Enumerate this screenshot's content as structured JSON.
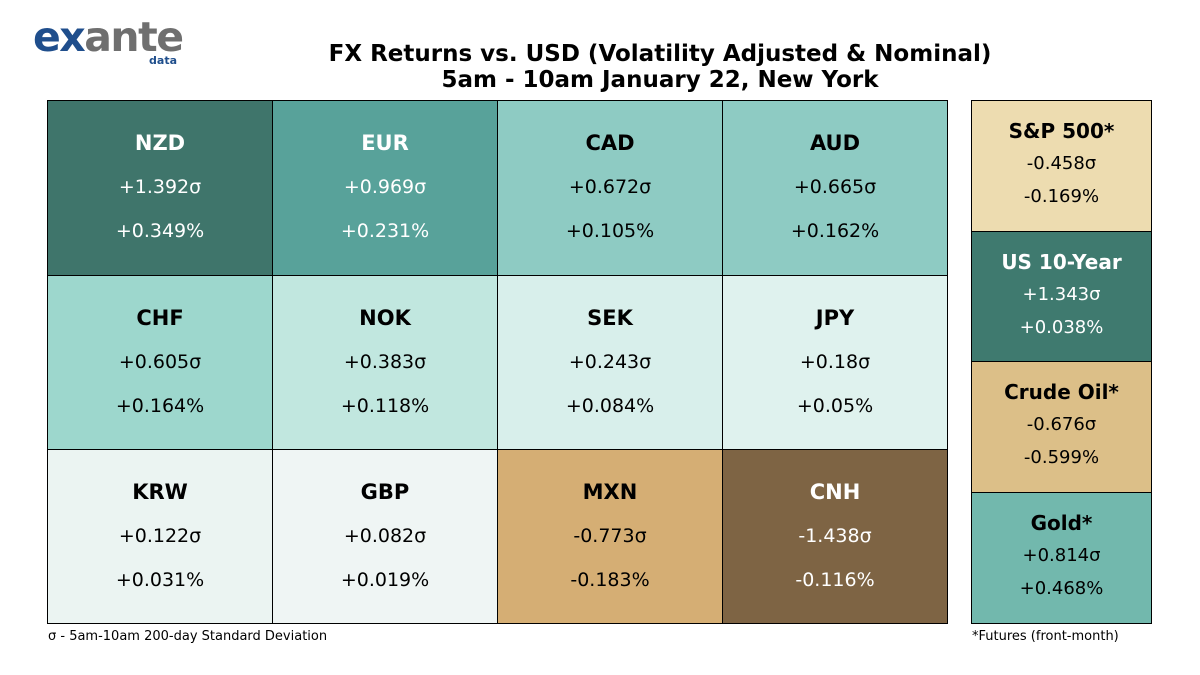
{
  "logo": {
    "word_part1": "ex",
    "word_part2": "ante",
    "sub": "data"
  },
  "title": {
    "line1": "FX Returns vs. USD (Volatility Adjusted & Nominal)",
    "line2": "5am - 10am January 22, New York"
  },
  "chart_data": {
    "type": "heatmap",
    "title": "FX Returns vs. USD (Volatility Adjusted & Nominal)",
    "subtitle": "5am - 10am January 22, New York",
    "currencies": [
      {
        "name": "NZD",
        "sigma": 1.392,
        "sigma_label": "+1.392σ",
        "pct": 0.349,
        "pct_label": "+0.349%",
        "color": "#3f756b"
      },
      {
        "name": "EUR",
        "sigma": 0.969,
        "sigma_label": "+0.969σ",
        "pct": 0.231,
        "pct_label": "+0.231%",
        "color": "#58a29a"
      },
      {
        "name": "CAD",
        "sigma": 0.672,
        "sigma_label": "+0.672σ",
        "pct": 0.105,
        "pct_label": "+0.105%",
        "color": "#8ecbc3"
      },
      {
        "name": "AUD",
        "sigma": 0.665,
        "sigma_label": "+0.665σ",
        "pct": 0.162,
        "pct_label": "+0.162%",
        "color": "#8ecbc3"
      },
      {
        "name": "CHF",
        "sigma": 0.605,
        "sigma_label": "+0.605σ",
        "pct": 0.164,
        "pct_label": "+0.164%",
        "color": "#9dd7cd"
      },
      {
        "name": "NOK",
        "sigma": 0.383,
        "sigma_label": "+0.383σ",
        "pct": 0.118,
        "pct_label": "+0.118%",
        "color": "#c1e7df"
      },
      {
        "name": "SEK",
        "sigma": 0.243,
        "sigma_label": "+0.243σ",
        "pct": 0.084,
        "pct_label": "+0.084%",
        "color": "#d8efeb"
      },
      {
        "name": "JPY",
        "sigma": 0.18,
        "sigma_label": "+0.18σ",
        "pct": 0.05,
        "pct_label": "+0.05%",
        "color": "#dff2ee"
      },
      {
        "name": "KRW",
        "sigma": 0.122,
        "sigma_label": "+0.122σ",
        "pct": 0.031,
        "pct_label": "+0.031%",
        "color": "#ebf4f2"
      },
      {
        "name": "GBP",
        "sigma": 0.082,
        "sigma_label": "+0.082σ",
        "pct": 0.019,
        "pct_label": "+0.019%",
        "color": "#eff5f4"
      },
      {
        "name": "MXN",
        "sigma": -0.773,
        "sigma_label": "-0.773σ",
        "pct": -0.183,
        "pct_label": "-0.183%",
        "color": "#d5ae74"
      },
      {
        "name": "CNH",
        "sigma": -1.438,
        "sigma_label": "-1.438σ",
        "pct": -0.116,
        "pct_label": "-0.116%",
        "color": "#7e6444"
      }
    ],
    "assets": [
      {
        "name": "S&P 500*",
        "sigma": -0.458,
        "sigma_label": "-0.458σ",
        "pct": -0.169,
        "pct_label": "-0.169%",
        "color": "#eddcb0"
      },
      {
        "name": "US 10-Year",
        "sigma": 1.343,
        "sigma_label": "+1.343σ",
        "pct": 0.038,
        "pct_label": "+0.038%",
        "color": "#3f7a6f"
      },
      {
        "name": "Crude Oil*",
        "sigma": -0.676,
        "sigma_label": "-0.676σ",
        "pct": -0.599,
        "pct_label": "-0.599%",
        "color": "#dcbf88"
      },
      {
        "name": "Gold*",
        "sigma": 0.814,
        "sigma_label": "+0.814σ",
        "pct": 0.468,
        "pct_label": "+0.468%",
        "color": "#72b8ad"
      }
    ]
  },
  "footnotes": {
    "left": "σ - 5am-10am 200-day Standard Deviation",
    "right": "*Futures (front-month)"
  }
}
